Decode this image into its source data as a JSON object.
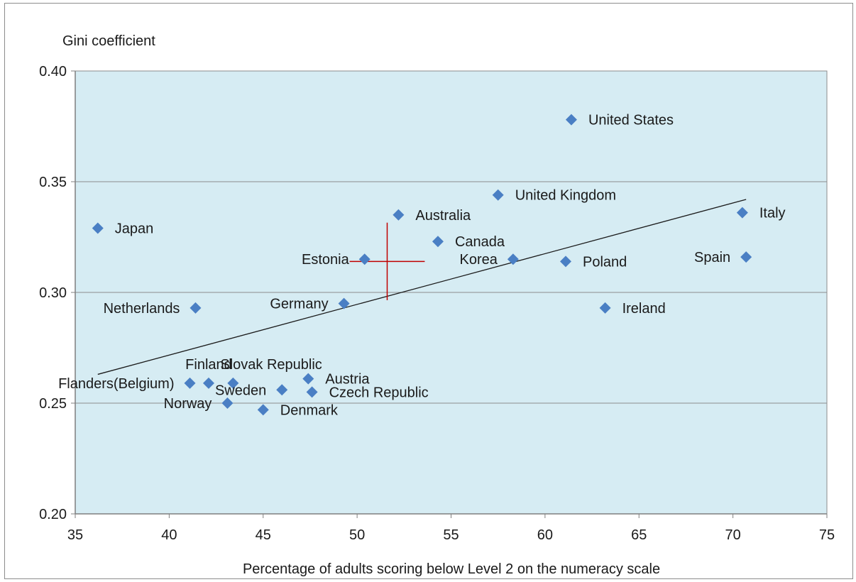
{
  "chart_data": {
    "type": "scatter",
    "title": "",
    "xlabel": "Percentage of adults scoring below Level 2 on the numeracy scale",
    "ylabel": "Gini coefficient",
    "xlim": [
      35,
      75
    ],
    "ylim": [
      0.2,
      0.4
    ],
    "x_ticks": [
      "35",
      "40",
      "45",
      "50",
      "55",
      "60",
      "65",
      "70",
      "75"
    ],
    "y_ticks": [
      "0.20",
      "0.25",
      "0.30",
      "0.35",
      "0.40"
    ],
    "grid": "horizontal",
    "plot_background": "#d6ecf3",
    "marker_color": "#4a7fc4",
    "trendline": {
      "x1": 36.2,
      "y1": 0.263,
      "x2": 70.7,
      "y2": 0.342
    },
    "mean_cross": {
      "x": 51.6,
      "y": 0.314,
      "x_half_width": 2.0,
      "y_half_height": 0.0175,
      "color": "#c00000"
    },
    "points": [
      {
        "label": "United States",
        "x": 61.4,
        "y": 0.378,
        "label_side": "right"
      },
      {
        "label": "United Kingdom",
        "x": 57.5,
        "y": 0.344,
        "label_side": "right"
      },
      {
        "label": "Italy",
        "x": 70.5,
        "y": 0.336,
        "label_side": "right"
      },
      {
        "label": "Australia",
        "x": 52.2,
        "y": 0.335,
        "label_side": "right"
      },
      {
        "label": "Japan",
        "x": 36.2,
        "y": 0.329,
        "label_side": "right"
      },
      {
        "label": "Canada",
        "x": 54.3,
        "y": 0.323,
        "label_side": "right"
      },
      {
        "label": "Spain",
        "x": 70.7,
        "y": 0.316,
        "label_side": "left"
      },
      {
        "label": "Estonia",
        "x": 50.4,
        "y": 0.315,
        "label_side": "left"
      },
      {
        "label": "Korea",
        "x": 58.3,
        "y": 0.315,
        "label_side": "left"
      },
      {
        "label": "Poland",
        "x": 61.1,
        "y": 0.314,
        "label_side": "right"
      },
      {
        "label": "Germany",
        "x": 49.3,
        "y": 0.295,
        "label_side": "left"
      },
      {
        "label": "Netherlands",
        "x": 41.4,
        "y": 0.293,
        "label_side": "left"
      },
      {
        "label": "Ireland",
        "x": 63.2,
        "y": 0.293,
        "label_side": "right"
      },
      {
        "label": "Austria",
        "x": 47.4,
        "y": 0.261,
        "label_side": "right"
      },
      {
        "label": "Flanders(Belgium)",
        "x": 41.1,
        "y": 0.259,
        "label_side": "left"
      },
      {
        "label": "Finland",
        "x": 42.1,
        "y": 0.259,
        "label_side": "above"
      },
      {
        "label": "Slovak Republic",
        "x": 43.4,
        "y": 0.259,
        "label_side": "above-right"
      },
      {
        "label": "Sweden",
        "x": 46.0,
        "y": 0.256,
        "label_side": "left"
      },
      {
        "label": "Czech Republic",
        "x": 47.6,
        "y": 0.255,
        "label_side": "right"
      },
      {
        "label": "Norway",
        "x": 43.1,
        "y": 0.25,
        "label_side": "left"
      },
      {
        "label": "Denmark",
        "x": 45.0,
        "y": 0.247,
        "label_side": "right"
      }
    ]
  }
}
